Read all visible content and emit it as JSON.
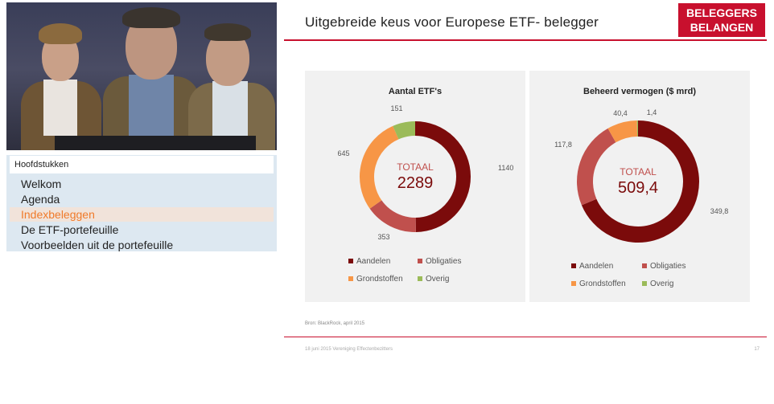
{
  "chapters": {
    "heading": "Hoofdstukken",
    "items": [
      "Welkom",
      "Agenda",
      "Indexbeleggen",
      "De ETF-portefeuille",
      "Voorbeelden uit de portefeuille"
    ],
    "active_index": 2
  },
  "slide": {
    "title": "Uitgebreide keus voor Europese ETF- belegger",
    "logo_line1": "BELEGGERS",
    "logo_line2": "BELANGEN",
    "source": "Bron: BlackRock, april 2015",
    "footer": "18 juni 2015 Vereniging Effectenbezitters",
    "page": "17"
  },
  "colors": {
    "aandelen": "#7b0b0b",
    "obligaties": "#c0504d",
    "grondstoffen": "#f79646",
    "overig": "#9bbb59",
    "brand": "#c8102e"
  },
  "chart_data": [
    {
      "type": "pie",
      "title": "Aantal ETF's",
      "center_label": "TOTAAL",
      "center_value": "2289",
      "categories": [
        "Aandelen",
        "Obligaties",
        "Grondstoffen",
        "Overig"
      ],
      "values": [
        1140,
        353,
        645,
        151
      ],
      "value_labels": [
        "1140",
        "353",
        "645",
        "151"
      ],
      "legend": [
        "Aandelen",
        "Obligaties",
        "Grondstoffen",
        "Overig"
      ]
    },
    {
      "type": "pie",
      "title": "Beheerd vermogen ($ mrd)",
      "center_label": "TOTAAL",
      "center_value": "509,4",
      "categories": [
        "Aandelen",
        "Obligaties",
        "Grondstoffen",
        "Overig"
      ],
      "values": [
        349.8,
        117.8,
        40.4,
        1.4
      ],
      "value_labels": [
        "349,8",
        "117,8",
        "40,4",
        "1,4"
      ],
      "legend": [
        "Aandelen",
        "Obligaties",
        "Grondstoffen",
        "Overig"
      ]
    }
  ]
}
